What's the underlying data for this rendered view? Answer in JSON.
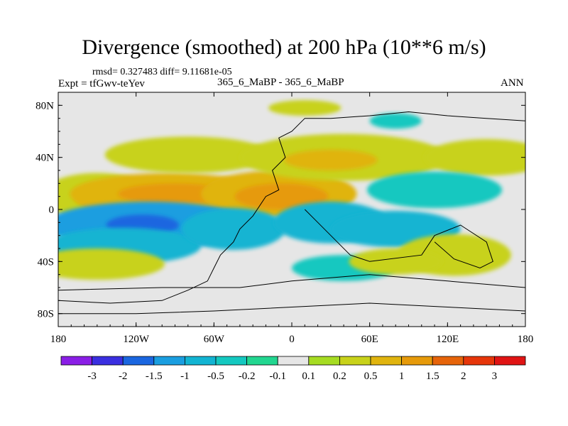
{
  "chart_data": {
    "type": "heatmap",
    "title": "Divergence (smoothed) at 200 hPa (10**6 m/s)",
    "stats_text": "rmsd= 0.327483 diff= 9.11681e-05",
    "expt_text": "Expt = tfGwv-teYev",
    "case_text": "365_6_MaBP - 365_6_MaBP",
    "season_text": "ANN",
    "xaxis": {
      "range": [
        -180,
        180
      ],
      "ticks": [
        -180,
        -120,
        -60,
        0,
        60,
        120,
        180
      ],
      "tick_labels": [
        "180",
        "120W",
        "60W",
        "0",
        "60E",
        "120E",
        "180"
      ]
    },
    "yaxis": {
      "range": [
        -90,
        90
      ],
      "ticks": [
        80,
        40,
        0,
        -40,
        -80
      ],
      "tick_labels": [
        "80N",
        "40N",
        "0",
        "40S",
        "80S"
      ]
    },
    "colorbar": {
      "levels": [
        "-3",
        "-2",
        "-1.5",
        "-1",
        "-0.5",
        "-0.2",
        "-0.1",
        "0.1",
        "0.2",
        "0.5",
        "1",
        "1.5",
        "2",
        "3"
      ],
      "colors": [
        "#8a1ee6",
        "#3a2fe0",
        "#1a66e0",
        "#1a9ee0",
        "#12b4d2",
        "#14c8c0",
        "#22d690",
        "#e6e6e6",
        "#a6dc22",
        "#c8d21a",
        "#e0b40e",
        "#e69a0a",
        "#e6640a",
        "#e6360a",
        "#e01414"
      ]
    },
    "fields": [
      {
        "label": "ne-pacific-positive",
        "level": "0.2",
        "cx": -150,
        "cy": 10,
        "rx": 22,
        "ry": 9
      },
      {
        "label": "ne-pacific-positive-core",
        "level": "0.5",
        "cx": -148,
        "cy": 10,
        "rx": 10,
        "ry": 5
      },
      {
        "label": "subtropical-band-positive",
        "level": "0.5",
        "cx": -95,
        "cy": 12,
        "rx": 38,
        "ry": 8
      },
      {
        "label": "subtropical-band-core",
        "level": "1",
        "cx": -90,
        "cy": 12,
        "rx": 22,
        "ry": 4
      },
      {
        "label": "africa-positive",
        "level": "0.5",
        "cx": -10,
        "cy": 12,
        "rx": 30,
        "ry": 9
      },
      {
        "label": "africa-positive-core",
        "level": "1",
        "cx": -8,
        "cy": 10,
        "rx": 18,
        "ry": 5
      },
      {
        "label": "north-atlantic-positive",
        "level": "0.2",
        "cx": -80,
        "cy": 42,
        "rx": 32,
        "ry": 7
      },
      {
        "label": "europe-positive",
        "level": "0.2",
        "cx": 40,
        "cy": 40,
        "rx": 40,
        "ry": 9
      },
      {
        "label": "europe-positive-core",
        "level": "0.5",
        "cx": 30,
        "cy": 38,
        "rx": 18,
        "ry": 4
      },
      {
        "label": "nw-pacific-positive",
        "level": "0.2",
        "cx": 150,
        "cy": 40,
        "rx": 24,
        "ry": 7
      },
      {
        "label": "asia-negative",
        "level": "-0.2",
        "cx": 110,
        "cy": 15,
        "rx": 26,
        "ry": 7
      },
      {
        "label": "east-pacific-negative",
        "level": "-1",
        "cx": -110,
        "cy": -12,
        "rx": 40,
        "ry": 9
      },
      {
        "label": "east-pacific-negative-core",
        "level": "-1.5",
        "cx": -115,
        "cy": -12,
        "rx": 14,
        "ry": 4
      },
      {
        "label": "south-pacific-negative",
        "level": "-0.5",
        "cx": -130,
        "cy": -28,
        "rx": 30,
        "ry": 7
      },
      {
        "label": "south-pacific-positive",
        "level": "0.2",
        "cx": -150,
        "cy": -42,
        "rx": 26,
        "ry": 6
      },
      {
        "label": "south-atlantic-negative",
        "level": "-0.5",
        "cx": -45,
        "cy": -15,
        "rx": 20,
        "ry": 8
      },
      {
        "label": "africa-negative",
        "level": "-0.5",
        "cx": 30,
        "cy": -10,
        "rx": 22,
        "ry": 8
      },
      {
        "label": "indian-ocean-negative",
        "level": "-0.5",
        "cx": 80,
        "cy": -15,
        "rx": 25,
        "ry": 7
      },
      {
        "label": "australia-positive",
        "level": "0.2",
        "cx": 125,
        "cy": -35,
        "rx": 22,
        "ry": 8
      },
      {
        "label": "southern-ocean-negative",
        "level": "-0.2",
        "cx": 40,
        "cy": -45,
        "rx": 20,
        "ry": 5
      },
      {
        "label": "southern-ocean-positive",
        "level": "0.2",
        "cx": 80,
        "cy": -40,
        "rx": 18,
        "ry": 5
      },
      {
        "label": "arctic-positive",
        "level": "0.2",
        "cx": 10,
        "cy": 78,
        "rx": 14,
        "ry": 3
      },
      {
        "label": "siberia-negative",
        "level": "-0.2",
        "cx": 80,
        "cy": 68,
        "rx": 10,
        "ry": 3
      }
    ],
    "coastlines": [
      [
        [
          -180,
          -70
        ],
        [
          -140,
          -72
        ],
        [
          -100,
          -70
        ],
        [
          -80,
          -62
        ],
        [
          -65,
          -55
        ],
        [
          -60,
          -45
        ],
        [
          -55,
          -35
        ],
        [
          -45,
          -25
        ],
        [
          -40,
          -15
        ],
        [
          -30,
          -5
        ],
        [
          -20,
          10
        ],
        [
          -10,
          15
        ],
        [
          -15,
          30
        ],
        [
          -5,
          40
        ],
        [
          -10,
          55
        ],
        [
          0,
          60
        ],
        [
          10,
          70
        ],
        [
          30,
          70
        ],
        [
          60,
          72
        ],
        [
          90,
          75
        ],
        [
          120,
          72
        ],
        [
          150,
          70
        ],
        [
          180,
          68
        ]
      ],
      [
        [
          -180,
          -80
        ],
        [
          -120,
          -80
        ],
        [
          -60,
          -78
        ],
        [
          0,
          -75
        ],
        [
          60,
          -72
        ],
        [
          120,
          -75
        ],
        [
          180,
          -78
        ]
      ],
      [
        [
          10,
          0
        ],
        [
          20,
          -10
        ],
        [
          35,
          -25
        ],
        [
          45,
          -35
        ],
        [
          60,
          -40
        ],
        [
          100,
          -35
        ],
        [
          110,
          -20
        ],
        [
          130,
          -12
        ],
        [
          150,
          -25
        ],
        [
          155,
          -40
        ],
        [
          145,
          -45
        ],
        [
          125,
          -38
        ],
        [
          110,
          -25
        ]
      ],
      [
        [
          -180,
          -62
        ],
        [
          -100,
          -60
        ],
        [
          -65,
          -60
        ],
        [
          -40,
          -60
        ],
        [
          0,
          -55
        ],
        [
          60,
          -50
        ],
        [
          120,
          -55
        ],
        [
          180,
          -60
        ]
      ]
    ]
  }
}
